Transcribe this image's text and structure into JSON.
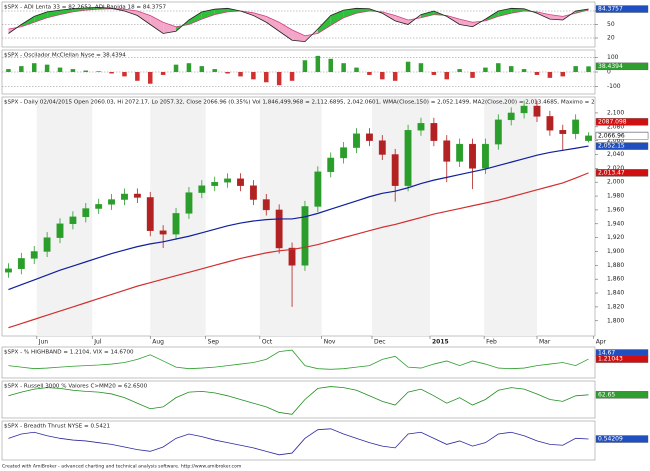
{
  "chart_data": [
    {
      "type": "line",
      "title": "$SPX - ADI Lenta 33 = 82.2652, ADI Rapida 18 = 84.3757",
      "fill_between": true,
      "fill_colors": [
        "#f4a6c8",
        "#2fbf3a"
      ],
      "ylim": [
        0,
        100
      ],
      "yticks": [
        20,
        50,
        80
      ],
      "grid": true,
      "series": [
        {
          "name": "ADI Lenta 33",
          "color": "#d04080",
          "values": [
            40,
            45,
            55,
            65,
            72,
            78,
            82,
            84,
            85,
            84,
            80,
            70,
            55,
            45,
            50,
            62,
            72,
            78,
            80,
            76,
            68,
            55,
            38,
            25,
            30,
            48,
            65,
            75,
            80,
            78,
            70,
            60,
            65,
            72,
            70,
            62,
            55,
            58,
            68,
            75,
            80,
            78,
            72,
            68,
            75,
            82.2652
          ]
        },
        {
          "name": "ADI Rapida 18",
          "color": "#222222",
          "values": [
            30,
            50,
            68,
            78,
            82,
            85,
            87,
            88,
            86,
            80,
            70,
            50,
            30,
            35,
            60,
            78,
            84,
            86,
            80,
            70,
            55,
            35,
            15,
            12,
            40,
            70,
            82,
            86,
            85,
            75,
            58,
            50,
            72,
            80,
            68,
            50,
            45,
            62,
            80,
            86,
            85,
            75,
            62,
            60,
            80,
            84.3757
          ]
        }
      ],
      "boxes": [
        {
          "value": 84.3757,
          "label": "84.3757",
          "color": "#2050c0"
        }
      ]
    },
    {
      "type": "bar",
      "title": "$SPX - Oscilador McClellan Nyse = 38.4394",
      "colors": [
        "#2e9e2e",
        "#d03030"
      ],
      "ylim": [
        -150,
        150
      ],
      "yticks": [
        -100,
        0,
        100
      ],
      "grid": true,
      "values": [
        20,
        40,
        60,
        50,
        30,
        20,
        10,
        5,
        -10,
        -30,
        -60,
        -80,
        -20,
        50,
        60,
        40,
        20,
        -10,
        -30,
        -50,
        -70,
        -90,
        -60,
        80,
        110,
        90,
        60,
        30,
        -20,
        -50,
        -60,
        70,
        60,
        -20,
        -50,
        20,
        -40,
        30,
        60,
        40,
        20,
        -20,
        -40,
        -30,
        40,
        38.4394
      ],
      "boxes": [
        {
          "value": 38.4394,
          "label": "38.4394",
          "color": "#2e9e2e"
        }
      ]
    },
    {
      "type": "candlestick",
      "title": "$SPX - Daily 02/04/2015 Open 2060.03, Hi 2072.17, Lo 2057.32, Close 2066.96 (0.35%) Vol 1,846,499,968 = 2,112.6895, 2,042.0601, WMA(Close,150) = 2,052.1499, MA2(Close,200) = 2,013.4685, Maximo = 2",
      "colors": [
        "#2a9d2a",
        "#b22222"
      ],
      "xlim": [
        -0.5,
        45.5
      ],
      "xticks": [
        {
          "value": 2.2,
          "label": "Jun"
        },
        {
          "value": 6.5,
          "label": "Jul"
        },
        {
          "value": 11.0,
          "label": "Aug"
        },
        {
          "value": 15.3,
          "label": "Sep"
        },
        {
          "value": 19.5,
          "label": "Oct"
        },
        {
          "value": 24.3,
          "label": "Nov"
        },
        {
          "value": 28.2,
          "label": "Dec"
        },
        {
          "value": 32.7,
          "label": "2015"
        },
        {
          "value": 36.9,
          "label": "Feb"
        },
        {
          "value": 41.0,
          "label": "Mar"
        },
        {
          "value": 45.4,
          "label": "Apr"
        }
      ],
      "ylim": [
        1778,
        2123
      ],
      "yticks": [
        {
          "value": 1800,
          "label": "1,800"
        },
        {
          "value": 1820,
          "label": "1,820"
        },
        {
          "value": 1840,
          "label": "1,840"
        },
        {
          "value": 1860,
          "label": "1,860"
        },
        {
          "value": 1880,
          "label": "1,880"
        },
        {
          "value": 1900,
          "label": "1,900"
        },
        {
          "value": 1920,
          "label": "1,920"
        },
        {
          "value": 1940,
          "label": "1,940"
        },
        {
          "value": 1960,
          "label": "1,960"
        },
        {
          "value": 1980,
          "label": "1,980"
        },
        {
          "value": 2000,
          "label": "2,000"
        },
        {
          "value": 2020,
          "label": "2,020"
        },
        {
          "value": 2040,
          "label": "2,040"
        },
        {
          "value": 2060,
          "label": "2,060"
        },
        {
          "value": 2080,
          "label": "2,080"
        },
        {
          "value": 2100,
          "label": "2,100"
        }
      ],
      "open": [
        1870,
        1875,
        1890,
        1900,
        1920,
        1940,
        1950,
        1962,
        1968,
        1975,
        1983,
        1978,
        1930,
        1925,
        1955,
        1985,
        1995,
        2000,
        2005,
        1995,
        1975,
        1960,
        1905,
        1880,
        1965,
        2015,
        2035,
        2050,
        2070,
        2060,
        2040,
        1995,
        2075,
        2085,
        2060,
        2030,
        2055,
        2020,
        2055,
        2090,
        2100,
        2110,
        2095,
        2075,
        2070,
        2060.03
      ],
      "high": [
        1883,
        1898,
        1908,
        1928,
        1948,
        1958,
        1970,
        1976,
        1983,
        1991,
        1991,
        1986,
        1938,
        1963,
        1993,
        2003,
        2008,
        2013,
        2013,
        2003,
        1983,
        1968,
        1913,
        1973,
        2023,
        2043,
        2058,
        2078,
        2078,
        2068,
        2048,
        2083,
        2093,
        2093,
        2068,
        2063,
        2063,
        2063,
        2098,
        2108,
        2118,
        2118,
        2103,
        2083,
        2098,
        2072.17
      ],
      "low": [
        1862,
        1867,
        1882,
        1892,
        1912,
        1932,
        1942,
        1954,
        1960,
        1967,
        1970,
        1922,
        1905,
        1917,
        1947,
        1977,
        1987,
        1992,
        1987,
        1967,
        1952,
        1897,
        1820,
        1872,
        1957,
        2007,
        2027,
        2042,
        2052,
        2032,
        1972,
        1987,
        2067,
        2052,
        2000,
        2022,
        1990,
        2012,
        2047,
        2082,
        2092,
        2087,
        2067,
        2045,
        2062,
        2057.32
      ],
      "close": [
        1875,
        1890,
        1900,
        1920,
        1940,
        1950,
        1962,
        1968,
        1975,
        1983,
        1978,
        1930,
        1925,
        1955,
        1985,
        1995,
        2000,
        2005,
        1995,
        1975,
        1960,
        1905,
        1880,
        1965,
        2015,
        2035,
        2050,
        2070,
        2060,
        2040,
        1995,
        2075,
        2085,
        2060,
        2030,
        2055,
        2020,
        2055,
        2090,
        2100,
        2110,
        2095,
        2075,
        2070,
        2090,
        2066.96
      ],
      "series": [
        {
          "name": "WMA(Close,150)",
          "color": "#10209a",
          "values": [
            1845,
            1852,
            1859,
            1866,
            1873,
            1879,
            1885,
            1891,
            1897,
            1902,
            1907,
            1911,
            1914,
            1918,
            1922,
            1927,
            1932,
            1937,
            1941,
            1944,
            1946,
            1947,
            1947,
            1950,
            1955,
            1961,
            1967,
            1973,
            1979,
            1984,
            1987,
            1992,
            1998,
            2003,
            2007,
            2011,
            2015,
            2019,
            2024,
            2029,
            2034,
            2039,
            2043,
            2046,
            2049,
            2052.1499
          ]
        },
        {
          "name": "MA2(Close,200)",
          "color": "#d03030",
          "values": [
            1790,
            1796,
            1802,
            1808,
            1814,
            1820,
            1826,
            1832,
            1838,
            1844,
            1850,
            1855,
            1860,
            1865,
            1870,
            1875,
            1880,
            1885,
            1890,
            1894,
            1898,
            1901,
            1903,
            1906,
            1910,
            1915,
            1920,
            1925,
            1930,
            1935,
            1939,
            1944,
            1949,
            1954,
            1958,
            1962,
            1966,
            1970,
            1974,
            1979,
            1984,
            1989,
            1994,
            1999,
            2006,
            2013.4685
          ]
        }
      ],
      "boxes": [
        {
          "value": 2087.098,
          "label": "2087.098",
          "color": "#d01010"
        },
        {
          "value": 2067.38,
          "label": "2,067.38",
          "color": "#2050c0"
        },
        {
          "value": 2066.96,
          "label": "2,066.96",
          "color": "#ffffff"
        },
        {
          "value": 2052.15,
          "label": "2,052.15",
          "color": "#2050c0"
        },
        {
          "value": 2013.47,
          "label": "2,013.47",
          "color": "#d01010"
        }
      ]
    },
    {
      "type": "line",
      "title": "$SPX - % HIGHBAND = 1.2104, VIX = 14.6700",
      "ylim": [
        0.6,
        1.6
      ],
      "series": [
        {
          "name": "% HIGHBAND",
          "color": "#2e9e2e",
          "values": [
            1.0,
            0.95,
            0.9,
            0.92,
            0.95,
            0.98,
            1.0,
            1.02,
            1.05,
            1.1,
            1.2,
            1.35,
            1.15,
            0.95,
            0.9,
            0.92,
            0.95,
            1.0,
            1.05,
            1.1,
            1.2,
            1.45,
            1.5,
            1.0,
            0.9,
            0.88,
            0.9,
            0.95,
            1.0,
            1.2,
            1.3,
            0.95,
            0.92,
            1.05,
            1.15,
            1.0,
            1.15,
            1.05,
            0.92,
            0.9,
            0.92,
            1.0,
            1.05,
            1.1,
            1.0,
            1.2104
          ]
        }
      ],
      "boxes": [
        {
          "value": 14.67,
          "label": "14.67",
          "color": "#2050c0"
        },
        {
          "value": 1.21043,
          "label": "1.21043",
          "color": "#d01010"
        }
      ]
    },
    {
      "type": "line",
      "title": "$SPX - Russell 3000 % Valores C>MM20 = 62.6500",
      "ylim": [
        0,
        100
      ],
      "series": [
        {
          "name": "Russell 3000 % Valores C>MM20",
          "color": "#1f8f1f",
          "values": [
            60,
            70,
            78,
            82,
            80,
            75,
            72,
            70,
            65,
            55,
            40,
            25,
            30,
            55,
            70,
            72,
            68,
            60,
            50,
            40,
            30,
            15,
            10,
            50,
            80,
            85,
            82,
            75,
            60,
            45,
            35,
            70,
            78,
            60,
            40,
            55,
            35,
            50,
            75,
            82,
            78,
            65,
            50,
            45,
            60,
            62.65
          ]
        }
      ],
      "boxes": [
        {
          "value": 62.65,
          "label": "62.65",
          "color": "#2e9e2e"
        }
      ]
    },
    {
      "type": "line",
      "title": "$SPX - Breadth Thrust NYSE = 0.5421",
      "ylim": [
        0.3,
        0.75
      ],
      "series": [
        {
          "name": "Breadth Thrust NYSE",
          "color": "#2a2aa0",
          "values": [
            0.55,
            0.6,
            0.62,
            0.58,
            0.55,
            0.53,
            0.52,
            0.5,
            0.48,
            0.45,
            0.42,
            0.4,
            0.45,
            0.55,
            0.6,
            0.57,
            0.53,
            0.5,
            0.47,
            0.44,
            0.4,
            0.36,
            0.38,
            0.55,
            0.65,
            0.66,
            0.6,
            0.55,
            0.5,
            0.46,
            0.44,
            0.6,
            0.62,
            0.55,
            0.48,
            0.52,
            0.46,
            0.5,
            0.6,
            0.62,
            0.58,
            0.52,
            0.48,
            0.47,
            0.55,
            0.5421
          ]
        }
      ],
      "boxes": [
        {
          "value": 0.5421,
          "label": "0.54209",
          "color": "#2050c0"
        }
      ]
    }
  ],
  "footer": "Created with AmiBroker - advanced charting and technical analysis software. http://www.amibroker.com"
}
